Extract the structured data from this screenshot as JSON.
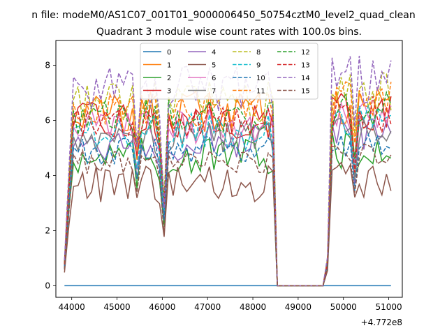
{
  "chart_data": {
    "type": "line",
    "suptitle": "n file: modeM0/AS1C07_001T01_9000006450_50754cztM0_level2_quad_clean",
    "title": "Quadrant 3 module wise count rates with 100.0s bins.",
    "xlabel": "",
    "ylabel": "",
    "x_offset_label": "+4.772e8",
    "xlim": [
      43650,
      51300
    ],
    "ylim": [
      -0.42,
      8.9
    ],
    "xticks": [
      44000,
      45000,
      46000,
      47000,
      48000,
      49000,
      50000,
      51000
    ],
    "xtick_labels": [
      "44000",
      "45000",
      "46000",
      "47000",
      "48000",
      "49000",
      "50000",
      "51000"
    ],
    "yticks": [
      0,
      2,
      4,
      6,
      8
    ],
    "ytick_labels": [
      "0",
      "2",
      "4",
      "6",
      "8"
    ],
    "legend_position": "upper center",
    "segments": [
      {
        "start": 43840,
        "end": 48440,
        "gap_end": 48540,
        "dip_times": [
          44000,
          45450,
          46000,
          46030
        ]
      },
      {
        "start": 49650,
        "end": 51140,
        "gap_start": 49550,
        "dip_times": [
          49750,
          50200,
          51140
        ]
      }
    ],
    "series": [
      {
        "name": "0",
        "color": "#1f77b4",
        "dash": "solid",
        "level": 0.0,
        "noise": 0.0
      },
      {
        "name": "1",
        "color": "#ff7f0e",
        "dash": "solid",
        "level": 6.3,
        "noise": 0.35
      },
      {
        "name": "2",
        "color": "#2ca02c",
        "dash": "solid",
        "level": 4.7,
        "noise": 0.3
      },
      {
        "name": "3",
        "color": "#d62728",
        "dash": "solid",
        "level": 6.0,
        "noise": 0.3
      },
      {
        "name": "4",
        "color": "#9467bd",
        "dash": "solid",
        "level": 5.2,
        "noise": 0.3
      },
      {
        "name": "5",
        "color": "#8c564b",
        "dash": "solid",
        "level": 3.7,
        "noise": 0.3
      },
      {
        "name": "6",
        "color": "#e377c2",
        "dash": "solid",
        "level": 5.8,
        "noise": 0.3
      },
      {
        "name": "7",
        "color": "#7f7f7f",
        "dash": "solid",
        "level": 5.4,
        "noise": 0.25
      },
      {
        "name": "8",
        "color": "#bcbd22",
        "dash": "dashed",
        "level": 6.7,
        "noise": 0.35
      },
      {
        "name": "9",
        "color": "#17becf",
        "dash": "dashed",
        "level": 5.6,
        "noise": 0.3
      },
      {
        "name": "10",
        "color": "#1f77b4",
        "dash": "dashed",
        "level": 4.9,
        "noise": 0.25
      },
      {
        "name": "11",
        "color": "#ff7f0e",
        "dash": "dashed",
        "level": 6.4,
        "noise": 0.3
      },
      {
        "name": "12",
        "color": "#2ca02c",
        "dash": "dashed",
        "level": 6.1,
        "noise": 0.3
      },
      {
        "name": "13",
        "color": "#d62728",
        "dash": "dashed",
        "level": 5.9,
        "noise": 0.3
      },
      {
        "name": "14",
        "color": "#9467bd",
        "dash": "dashed",
        "level": 7.1,
        "noise": 0.4
      },
      {
        "name": "15",
        "color": "#8c564b",
        "dash": "dashed",
        "level": 4.5,
        "noise": 0.2
      }
    ]
  }
}
